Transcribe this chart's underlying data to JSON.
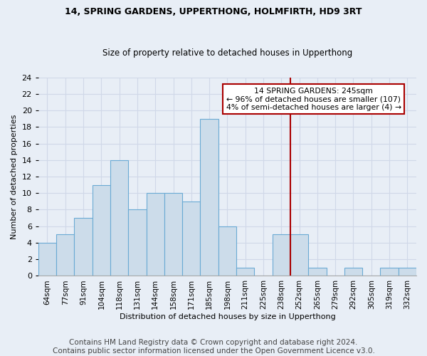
{
  "title1": "14, SPRING GARDENS, UPPERTHONG, HOLMFIRTH, HD9 3RT",
  "title2": "Size of property relative to detached houses in Upperthong",
  "xlabel": "Distribution of detached houses by size in Upperthong",
  "ylabel": "Number of detached properties",
  "bin_labels": [
    "64sqm",
    "77sqm",
    "91sqm",
    "104sqm",
    "118sqm",
    "131sqm",
    "144sqm",
    "158sqm",
    "171sqm",
    "185sqm",
    "198sqm",
    "211sqm",
    "225sqm",
    "238sqm",
    "252sqm",
    "265sqm",
    "279sqm",
    "292sqm",
    "305sqm",
    "319sqm",
    "332sqm"
  ],
  "bar_heights": [
    4,
    5,
    7,
    11,
    14,
    8,
    10,
    10,
    9,
    19,
    6,
    1,
    0,
    5,
    5,
    1,
    0,
    1,
    0,
    1,
    1
  ],
  "bar_color": "#ccdcea",
  "bar_edge_color": "#6aaad4",
  "bar_width": 1.0,
  "vline_pos": 13.5,
  "vline_color": "#aa0000",
  "annotation_title": "14 SPRING GARDENS: 245sqm",
  "annotation_line1": "← 96% of detached houses are smaller (107)",
  "annotation_line2": "4% of semi-detached houses are larger (4) →",
  "annotation_box_color": "#ffffff",
  "annotation_box_edge": "#aa0000",
  "ylim": [
    0,
    24
  ],
  "yticks": [
    0,
    2,
    4,
    6,
    8,
    10,
    12,
    14,
    16,
    18,
    20,
    22,
    24
  ],
  "background_color": "#e8eef6",
  "grid_color": "#d0d8e8",
  "footer": "Contains HM Land Registry data © Crown copyright and database right 2024.\nContains public sector information licensed under the Open Government Licence v3.0.",
  "footer_fontsize": 7.5
}
